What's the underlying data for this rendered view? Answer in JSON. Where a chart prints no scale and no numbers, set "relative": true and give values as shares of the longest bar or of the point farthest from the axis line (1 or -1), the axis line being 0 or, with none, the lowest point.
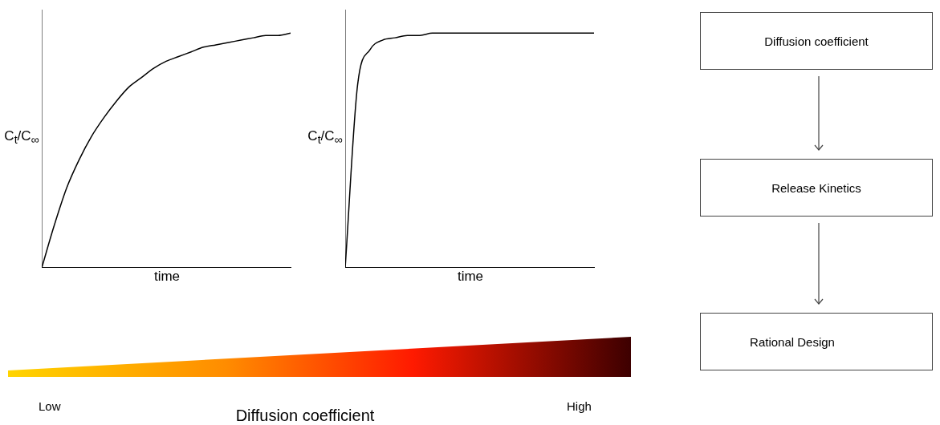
{
  "chart_data": [
    {
      "type": "line",
      "relative": true,
      "xlabel": "time",
      "ylabel": "C$_{t}$/C$_{∞}$",
      "legend": false,
      "grid": false,
      "categories": [
        null,
        null,
        null,
        null,
        null,
        null,
        null,
        null,
        null,
        null,
        null,
        null,
        null,
        null,
        null,
        null,
        null,
        null,
        null,
        null,
        null
      ],
      "series": [
        {
          "color": "#000000",
          "values": [
            0,
            0.18,
            0.34,
            0.46,
            0.56,
            0.64,
            0.71,
            0.77,
            0.81,
            0.85,
            0.88,
            0.9,
            0.92,
            0.94,
            0.95,
            0.96,
            0.97,
            0.98,
            0.99,
            0.99,
            1
          ]
        }
      ]
    },
    {
      "type": "line",
      "relative": true,
      "xlabel": "time",
      "ylabel": "C$_{t}$/C$_{∞}$",
      "legend": false,
      "grid": false,
      "categories": [
        null,
        null,
        null,
        null,
        null,
        null,
        null,
        null,
        null,
        null,
        null,
        null,
        null,
        null,
        null,
        null,
        null,
        null,
        null,
        null,
        null
      ],
      "series": [
        {
          "color": "#000000",
          "values": [
            0,
            0.78,
            0.93,
            0.97,
            0.98,
            0.99,
            0.99,
            1,
            1,
            1,
            1,
            1,
            1,
            1,
            1,
            1,
            1,
            1,
            1,
            1,
            1
          ]
        }
      ]
    },
    {
      "type": "other",
      "annotations": [
        "Diffusion coefficient",
        "Release Kinetics",
        "Rational Design"
      ]
    },
    {
      "type": "other",
      "xlabel": "Diffusion coefficient",
      "annotations": [
        "Low",
        "High"
      ]
    }
  ]
}
